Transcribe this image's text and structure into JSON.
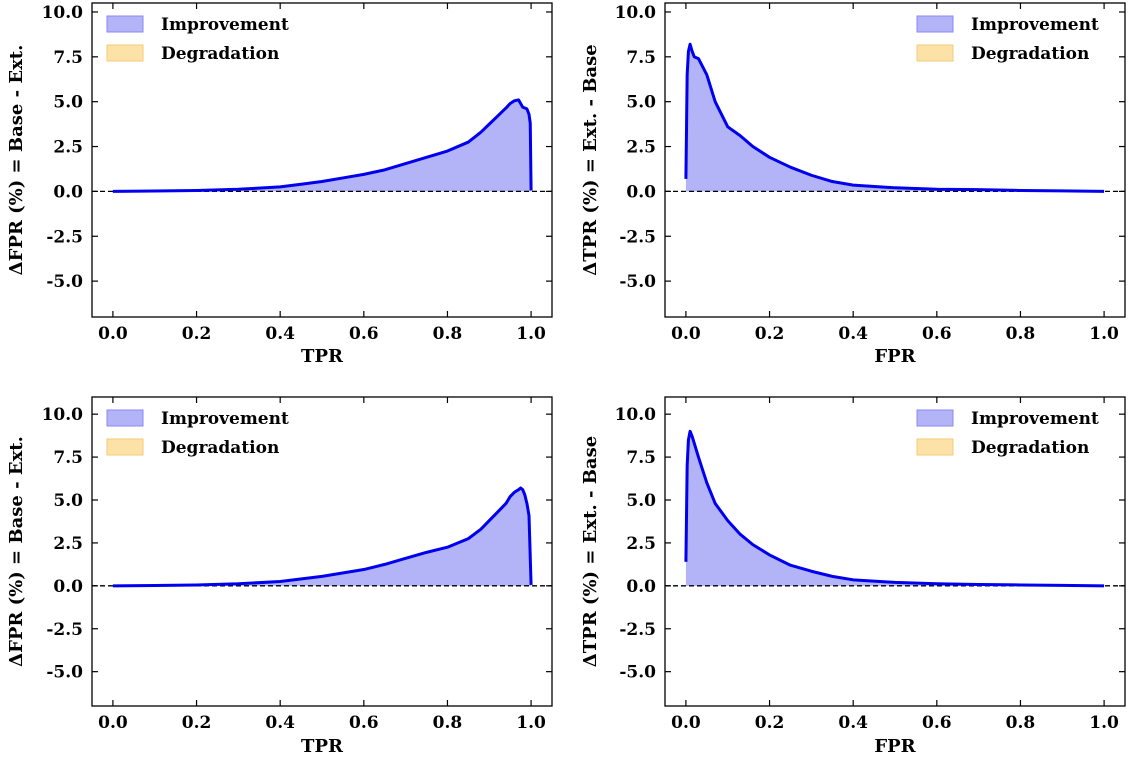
{
  "chart_data": [
    {
      "type": "area",
      "xlabel": "TPR",
      "ylabel": "ΔFPR (%) = Base - Ext.",
      "xlim": [
        -0.05,
        1.05
      ],
      "ylim": [
        -7,
        10.5
      ],
      "xticks": [
        "0.0",
        "0.2",
        "0.4",
        "0.6",
        "0.8",
        "1.0"
      ],
      "yticks": [
        "-5.0",
        "-2.5",
        "0.0",
        "2.5",
        "5.0",
        "7.5",
        "10.0"
      ],
      "legend": {
        "placement": "top-left",
        "entries": [
          "Improvement",
          "Degradation"
        ]
      },
      "series": [
        {
          "name": "Improvement",
          "color": "#0000ee",
          "fill": "#b3b3f7",
          "x": [
            0.0,
            0.1,
            0.2,
            0.3,
            0.4,
            0.45,
            0.5,
            0.55,
            0.6,
            0.65,
            0.7,
            0.75,
            0.8,
            0.85,
            0.88,
            0.9,
            0.92,
            0.94,
            0.95,
            0.96,
            0.97,
            0.98,
            0.985,
            0.99,
            0.995,
            0.998,
            1.0
          ],
          "y": [
            0.0,
            0.02,
            0.05,
            0.12,
            0.25,
            0.4,
            0.55,
            0.75,
            0.95,
            1.2,
            1.55,
            1.9,
            2.25,
            2.75,
            3.3,
            3.75,
            4.2,
            4.65,
            4.9,
            5.05,
            5.1,
            4.7,
            4.65,
            4.6,
            4.3,
            3.8,
            0.05
          ]
        }
      ]
    },
    {
      "type": "area",
      "xlabel": "FPR",
      "ylabel": "ΔTPR (%) = Ext. - Base",
      "xlim": [
        -0.05,
        1.05
      ],
      "ylim": [
        -7,
        10.5
      ],
      "xticks": [
        "0.0",
        "0.2",
        "0.4",
        "0.6",
        "0.8",
        "1.0"
      ],
      "yticks": [
        "-5.0",
        "-2.5",
        "0.0",
        "2.5",
        "5.0",
        "7.5",
        "10.0"
      ],
      "legend": {
        "placement": "top-right",
        "entries": [
          "Improvement",
          "Degradation"
        ]
      },
      "series": [
        {
          "name": "Improvement",
          "color": "#0000ee",
          "fill": "#b3b3f7",
          "x": [
            0.0,
            0.003,
            0.006,
            0.01,
            0.015,
            0.02,
            0.03,
            0.05,
            0.07,
            0.1,
            0.13,
            0.16,
            0.2,
            0.25,
            0.3,
            0.35,
            0.4,
            0.5,
            0.6,
            0.7,
            0.8,
            0.9,
            1.0
          ],
          "y": [
            0.7,
            6.5,
            7.8,
            8.2,
            7.8,
            7.5,
            7.4,
            6.5,
            5.0,
            3.6,
            3.1,
            2.5,
            1.9,
            1.35,
            0.9,
            0.55,
            0.35,
            0.2,
            0.12,
            0.1,
            0.05,
            0.03,
            0.0
          ]
        }
      ]
    },
    {
      "type": "area",
      "xlabel": "TPR",
      "ylabel": "ΔFPR (%) = Base - Ext.",
      "xlim": [
        -0.05,
        1.05
      ],
      "ylim": [
        -7,
        11
      ],
      "xticks": [
        "0.0",
        "0.2",
        "0.4",
        "0.6",
        "0.8",
        "1.0"
      ],
      "yticks": [
        "-5.0",
        "-2.5",
        "0.0",
        "2.5",
        "5.0",
        "7.5",
        "10.0"
      ],
      "legend": {
        "placement": "top-left",
        "entries": [
          "Improvement",
          "Degradation"
        ]
      },
      "series": [
        {
          "name": "Improvement",
          "color": "#0000ee",
          "fill": "#b3b3f7",
          "x": [
            0.0,
            0.1,
            0.2,
            0.3,
            0.4,
            0.5,
            0.6,
            0.65,
            0.7,
            0.75,
            0.8,
            0.85,
            0.88,
            0.9,
            0.92,
            0.94,
            0.95,
            0.96,
            0.97,
            0.975,
            0.98,
            0.985,
            0.99,
            0.995,
            1.0
          ],
          "y": [
            0.0,
            0.02,
            0.05,
            0.12,
            0.25,
            0.55,
            0.95,
            1.25,
            1.6,
            1.95,
            2.25,
            2.75,
            3.3,
            3.8,
            4.3,
            4.8,
            5.2,
            5.45,
            5.6,
            5.7,
            5.6,
            5.3,
            4.8,
            4.1,
            0.05
          ]
        }
      ]
    },
    {
      "type": "area",
      "xlabel": "FPR",
      "ylabel": "ΔTPR (%) = Ext. - Base",
      "xlim": [
        -0.05,
        1.05
      ],
      "ylim": [
        -7,
        11
      ],
      "xticks": [
        "0.0",
        "0.2",
        "0.4",
        "0.6",
        "0.8",
        "1.0"
      ],
      "yticks": [
        "-5.0",
        "-2.5",
        "0.0",
        "2.5",
        "5.0",
        "7.5",
        "10.0"
      ],
      "legend": {
        "placement": "top-right",
        "entries": [
          "Improvement",
          "Degradation"
        ]
      },
      "series": [
        {
          "name": "Improvement",
          "color": "#0000ee",
          "fill": "#b3b3f7",
          "x": [
            0.0,
            0.003,
            0.006,
            0.01,
            0.015,
            0.02,
            0.03,
            0.05,
            0.07,
            0.1,
            0.13,
            0.16,
            0.2,
            0.25,
            0.3,
            0.35,
            0.4,
            0.5,
            0.6,
            0.7,
            0.8,
            0.9,
            1.0
          ],
          "y": [
            1.4,
            7.0,
            8.5,
            9.0,
            8.7,
            8.3,
            7.5,
            6.0,
            4.8,
            3.8,
            3.0,
            2.4,
            1.8,
            1.2,
            0.85,
            0.55,
            0.35,
            0.2,
            0.12,
            0.08,
            0.05,
            0.03,
            0.0
          ]
        }
      ]
    }
  ],
  "colors": {
    "improvement_line": "#0000ee",
    "improvement_fill": "#b3b3f7",
    "degradation_fill": "#fde2a8",
    "zero_line": "#000000"
  }
}
